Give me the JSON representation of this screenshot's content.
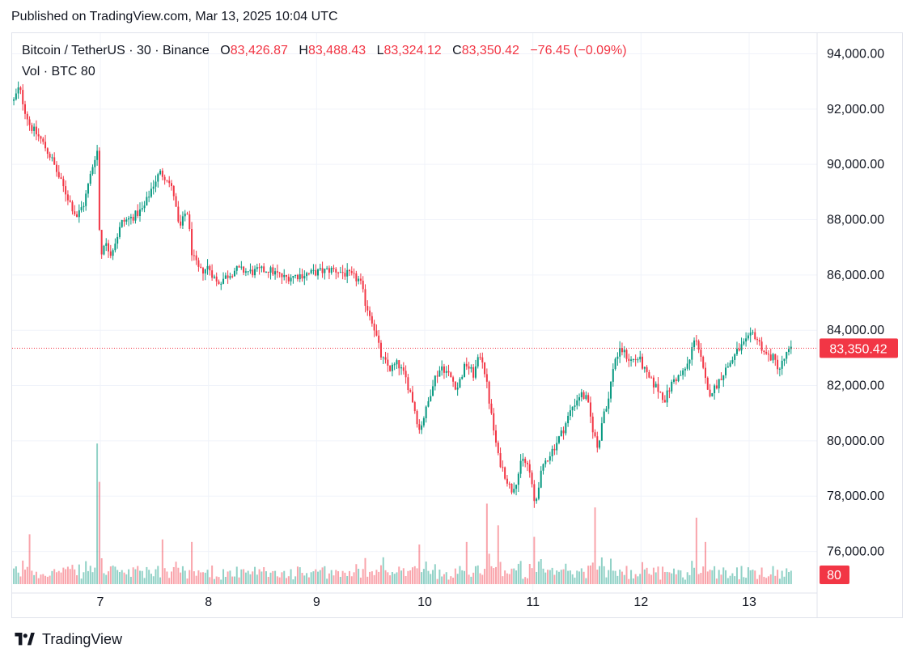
{
  "header": {
    "published": "Published on TradingView.com, Mar 13, 2025 10:04 UTC"
  },
  "legend": {
    "symbol": "Bitcoin / TetherUS · 30 · Binance",
    "o_label": "O",
    "o_value": "83,426.87",
    "h_label": "H",
    "h_value": "83,488.43",
    "l_label": "L",
    "l_value": "83,324.12",
    "c_label": "C",
    "c_value": "83,350.42",
    "change": "−76.45 (−0.09%)",
    "vol_label": "Vol · BTC",
    "vol_value": "80"
  },
  "colors": {
    "up": "#089981",
    "down": "#f23645",
    "grid": "#f0f3fa",
    "text": "#131722"
  },
  "brand": {
    "name": "TradingView",
    "logo_icon": "tradingview-logo-icon"
  },
  "chart_data": {
    "type": "candlestick",
    "title": "Bitcoin / TetherUS · 30 · Binance",
    "interval": "30",
    "grid": true,
    "y_axis": {
      "ticks": [
        94000,
        92000,
        90000,
        88000,
        86000,
        84000,
        82000,
        80000,
        78000,
        76000
      ],
      "tick_labels": [
        "94,000.00",
        "92,000.00",
        "90,000.00",
        "88,000.00",
        "86,000.00",
        "84,000.00",
        "82,000.00",
        "80,000.00",
        "78,000.00",
        "76,000.00"
      ],
      "range": [
        75000,
        95000
      ]
    },
    "x_axis": {
      "tick_labels": [
        "7",
        "8",
        "9",
        "10",
        "11",
        "12",
        "13"
      ],
      "tick_days": [
        7,
        8,
        9,
        10,
        11,
        12,
        13
      ],
      "range_days": [
        6.2,
        13.55
      ]
    },
    "last_price": 83350.42,
    "last_price_label": "83,350.42",
    "last_volume_label": "80",
    "price_path": [
      [
        6.2,
        92300
      ],
      [
        6.25,
        92800
      ],
      [
        6.3,
        92000
      ],
      [
        6.35,
        91400
      ],
      [
        6.45,
        90900
      ],
      [
        6.55,
        90200
      ],
      [
        6.62,
        89500
      ],
      [
        6.7,
        88800
      ],
      [
        6.78,
        88100
      ],
      [
        6.85,
        88600
      ],
      [
        6.92,
        89800
      ],
      [
        6.97,
        90600
      ],
      [
        7.0,
        86500
      ],
      [
        7.03,
        87200
      ],
      [
        7.1,
        86800
      ],
      [
        7.2,
        87900
      ],
      [
        7.3,
        88100
      ],
      [
        7.4,
        88400
      ],
      [
        7.48,
        89200
      ],
      [
        7.55,
        89700
      ],
      [
        7.62,
        89500
      ],
      [
        7.68,
        88900
      ],
      [
        7.73,
        87600
      ],
      [
        7.8,
        88400
      ],
      [
        7.85,
        86700
      ],
      [
        7.92,
        86100
      ],
      [
        8.0,
        86300
      ],
      [
        8.08,
        85700
      ],
      [
        8.15,
        85900
      ],
      [
        8.25,
        86200
      ],
      [
        8.4,
        86100
      ],
      [
        8.55,
        86200
      ],
      [
        8.7,
        85900
      ],
      [
        8.85,
        86000
      ],
      [
        9.0,
        86100
      ],
      [
        9.15,
        86200
      ],
      [
        9.3,
        86000
      ],
      [
        9.4,
        85800
      ],
      [
        9.45,
        85000
      ],
      [
        9.52,
        84300
      ],
      [
        9.6,
        83000
      ],
      [
        9.68,
        82600
      ],
      [
        9.75,
        82800
      ],
      [
        9.82,
        82300
      ],
      [
        9.88,
        81600
      ],
      [
        9.95,
        80400
      ],
      [
        10.02,
        81200
      ],
      [
        10.08,
        82200
      ],
      [
        10.16,
        82700
      ],
      [
        10.24,
        82300
      ],
      [
        10.3,
        81900
      ],
      [
        10.38,
        82800
      ],
      [
        10.45,
        82400
      ],
      [
        10.52,
        83200
      ],
      [
        10.56,
        82400
      ],
      [
        10.62,
        80800
      ],
      [
        10.68,
        79400
      ],
      [
        10.74,
        78800
      ],
      [
        10.8,
        78200
      ],
      [
        10.85,
        78600
      ],
      [
        10.9,
        79300
      ],
      [
        10.96,
        79100
      ],
      [
        11.02,
        77600
      ],
      [
        11.06,
        78600
      ],
      [
        11.12,
        79300
      ],
      [
        11.2,
        79800
      ],
      [
        11.28,
        80400
      ],
      [
        11.36,
        81200
      ],
      [
        11.44,
        81700
      ],
      [
        11.5,
        81500
      ],
      [
        11.55,
        80500
      ],
      [
        11.6,
        79700
      ],
      [
        11.65,
        81000
      ],
      [
        11.7,
        81500
      ],
      [
        11.75,
        82900
      ],
      [
        11.82,
        83300
      ],
      [
        11.9,
        82900
      ],
      [
        11.98,
        83000
      ],
      [
        12.06,
        82300
      ],
      [
        12.15,
        81900
      ],
      [
        12.22,
        81500
      ],
      [
        12.3,
        82200
      ],
      [
        12.38,
        82400
      ],
      [
        12.45,
        82900
      ],
      [
        12.5,
        83900
      ],
      [
        12.55,
        83000
      ],
      [
        12.62,
        81700
      ],
      [
        12.68,
        81900
      ],
      [
        12.75,
        82400
      ],
      [
        12.82,
        82800
      ],
      [
        12.9,
        83300
      ],
      [
        12.98,
        83600
      ],
      [
        13.04,
        83900
      ],
      [
        13.1,
        83500
      ],
      [
        13.16,
        83100
      ],
      [
        13.22,
        83000
      ],
      [
        13.28,
        82600
      ],
      [
        13.34,
        83100
      ],
      [
        13.4,
        83350
      ]
    ],
    "volume_spikes": [
      {
        "day": 6.97,
        "btc": 11000
      },
      {
        "day": 7.0,
        "btc": 8000
      },
      {
        "day": 6.35,
        "btc": 3900
      },
      {
        "day": 7.58,
        "btc": 3500
      },
      {
        "day": 7.85,
        "btc": 3300
      },
      {
        "day": 9.62,
        "btc": 2100
      },
      {
        "day": 9.96,
        "btc": 3100
      },
      {
        "day": 10.38,
        "btc": 3300
      },
      {
        "day": 10.58,
        "btc": 6300
      },
      {
        "day": 10.68,
        "btc": 4600
      },
      {
        "day": 11.02,
        "btc": 3700
      },
      {
        "day": 11.58,
        "btc": 6000
      },
      {
        "day": 12.52,
        "btc": 5200
      },
      {
        "day": 12.6,
        "btc": 3300
      }
    ]
  }
}
